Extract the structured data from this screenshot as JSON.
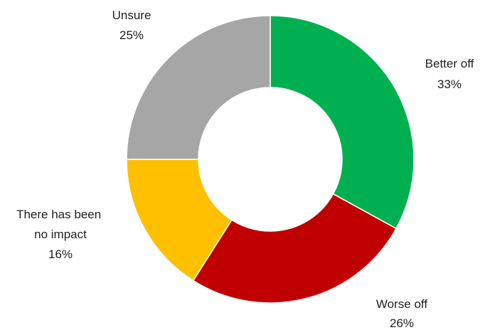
{
  "chart_data": {
    "type": "pie",
    "variant": "donut",
    "start": "top, clockwise",
    "slices": [
      {
        "label": "Better off",
        "value": 33,
        "value_label": "33%",
        "color": "#00B050"
      },
      {
        "label": "Worse off",
        "value": 26,
        "value_label": "26%",
        "color": "#C00000"
      },
      {
        "label": "There has been no impact",
        "value": 16,
        "value_label": "16%",
        "color": "#FFC000"
      },
      {
        "label": "Unsure",
        "value": 25,
        "value_label": "25%",
        "color": "#A6A6A6"
      }
    ]
  }
}
